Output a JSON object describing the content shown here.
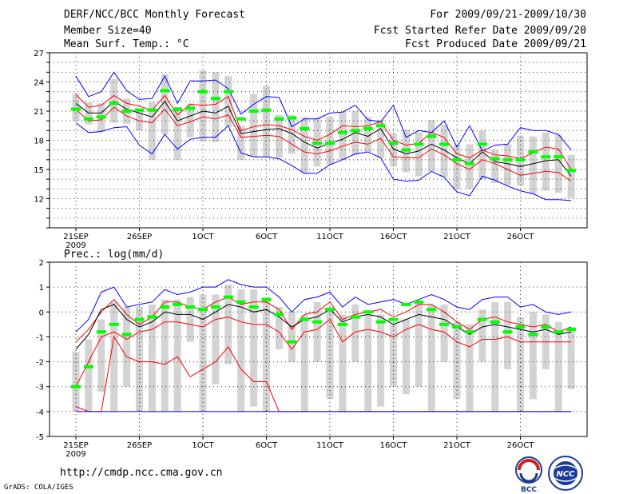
{
  "header": {
    "title": "DERF/NCC/BCC Monthly Forecast",
    "member_size": "Member Size=40",
    "variable": "Mean Surf. Temp.: °C",
    "period": "For 2009/09/21-2009/10/30",
    "started": "Fcst Started Refer Date 2009/09/20",
    "produced": "Fcst Produced Date 2009/09/21"
  },
  "footer": {
    "url": "http://cmdp.ncc.cma.gov.cn",
    "credit": "GrADS: COLA/IGES"
  },
  "logos": {
    "left": "BCC",
    "right": "NCC"
  },
  "colors": {
    "max": "#0000ff",
    "min": "#ff0000",
    "mean": "#000000",
    "obs": "#00ff00",
    "box": "#d3d3d3"
  },
  "chart_data": [
    {
      "type": "line",
      "title": "Mean Surf. Temp.: °C",
      "xlabel": "",
      "ylabel": "",
      "x_tick_labels": [
        "21SEP",
        "26SEP",
        "1OCT",
        "6OCT",
        "11OCT",
        "16OCT",
        "21OCT",
        "26OCT"
      ],
      "year_label": "2009",
      "ylim": [
        9,
        27
      ],
      "y_ticks": [
        12,
        15,
        18,
        21,
        24,
        27
      ],
      "series": [
        {
          "name": "max",
          "color": "#0000ff",
          "values": [
            24.6,
            22.5,
            23.0,
            25.0,
            23.1,
            22.2,
            22.3,
            24.6,
            21.8,
            24.1,
            24.1,
            24.2,
            23.3,
            20.7,
            21.7,
            22.5,
            22.4,
            19.4,
            20.2,
            20.2,
            20.8,
            20.9,
            21.6,
            20.1,
            19.9,
            21.6,
            18.3,
            19.0,
            18.8,
            20.0,
            17.3,
            19.5,
            16.9,
            17.5,
            17.6,
            19.3,
            19.0,
            19.0,
            18.6,
            17.0
          ]
        },
        {
          "name": "upper",
          "color": "#ff0000",
          "values": [
            22.7,
            21.4,
            21.6,
            22.6,
            21.8,
            21.5,
            21.1,
            22.6,
            20.6,
            21.7,
            21.6,
            21.7,
            22.5,
            19.0,
            19.4,
            19.6,
            19.5,
            19.1,
            18.4,
            18.0,
            18.6,
            19.5,
            19.4,
            19.5,
            19.9,
            18.0,
            17.5,
            17.7,
            18.8,
            18.3,
            16.6,
            16.2,
            17.0,
            16.5,
            16.4,
            16.1,
            16.7,
            17.3,
            17.1,
            15.0
          ]
        },
        {
          "name": "mean",
          "color": "#000000",
          "values": [
            21.8,
            20.8,
            20.8,
            22.0,
            21.2,
            20.8,
            20.4,
            22.0,
            20.0,
            20.5,
            21.0,
            20.8,
            21.5,
            18.7,
            18.9,
            19.1,
            19.2,
            18.7,
            17.8,
            17.2,
            17.7,
            18.1,
            18.8,
            18.4,
            19.2,
            17.1,
            16.6,
            16.9,
            17.6,
            17.0,
            16.2,
            15.6,
            16.8,
            15.8,
            15.6,
            15.3,
            15.6,
            15.9,
            16.0,
            14.3
          ]
        },
        {
          "name": "lower",
          "color": "#ff0000",
          "values": [
            21.2,
            20.0,
            20.1,
            21.4,
            20.5,
            20.0,
            19.8,
            21.2,
            19.5,
            19.9,
            20.4,
            20.2,
            20.6,
            18.3,
            18.4,
            18.5,
            18.4,
            17.6,
            16.8,
            16.6,
            16.9,
            17.4,
            17.8,
            17.6,
            18.2,
            16.3,
            16.2,
            16.2,
            17.1,
            16.5,
            15.6,
            15.0,
            16.0,
            15.6,
            15.0,
            14.4,
            14.6,
            14.8,
            14.7,
            13.8
          ]
        },
        {
          "name": "min",
          "color": "#0000ff",
          "values": [
            19.8,
            18.8,
            18.9,
            19.3,
            19.4,
            17.5,
            16.6,
            18.6,
            17.1,
            18.1,
            18.3,
            18.3,
            19.5,
            16.7,
            16.3,
            16.3,
            16.1,
            15.4,
            14.6,
            14.6,
            15.5,
            16.0,
            16.6,
            16.8,
            16.2,
            14.0,
            13.8,
            13.9,
            14.8,
            14.2,
            12.7,
            12.3,
            14.3,
            13.9,
            13.3,
            12.8,
            12.5,
            11.9,
            11.9,
            11.8
          ]
        }
      ],
      "observed": [
        21.2,
        20.2,
        20.4,
        21.8,
        21.0,
        21.1,
        21.1,
        23.1,
        21.2,
        21.3,
        23.0,
        22.3,
        23.0,
        20.2,
        21.0,
        21.1,
        20.2,
        20.3,
        19.2,
        17.7,
        17.7,
        18.8,
        19.0,
        19.2,
        19.5,
        17.7,
        17.0,
        17.6,
        18.4,
        17.6,
        16.0,
        15.6,
        17.6,
        16.1,
        16.0,
        16.0,
        16.8,
        16.3,
        16.3,
        14.9
      ],
      "box_low": [
        20.0,
        19.6,
        18.9,
        19.8,
        19.7,
        19.0,
        16.0,
        18.6,
        16.0,
        18.3,
        17.9,
        17.8,
        19.4,
        16.0,
        16.3,
        16.3,
        16.2,
        16.6,
        14.6,
        15.3,
        15.5,
        16.0,
        16.5,
        16.8,
        16.2,
        15.3,
        14.7,
        14.3,
        14.8,
        14.2,
        13.0,
        13.0,
        14.0,
        13.6,
        13.4,
        13.3,
        12.5,
        12.8,
        12.6,
        12.1
      ],
      "box_high": [
        22.8,
        21.9,
        21.8,
        24.3,
        22.3,
        21.3,
        21.9,
        24.8,
        21.4,
        21.8,
        25.2,
        25.0,
        24.6,
        19.5,
        22.8,
        23.6,
        20.6,
        20.6,
        20.4,
        20.3,
        20.4,
        20.9,
        21.0,
        20.4,
        20.1,
        18.7,
        19.1,
        18.8,
        20.1,
        19.6,
        17.5,
        17.6,
        19.0,
        17.0,
        17.6,
        18.5,
        18.4,
        18.8,
        18.6,
        16.5
      ]
    },
    {
      "type": "line",
      "title": "Prec.: log(mm/d)",
      "xlabel": "",
      "ylabel": "",
      "x_tick_labels": [
        "21SEP",
        "26SEP",
        "1OCT",
        "6OCT",
        "11OCT",
        "16OCT",
        "21OCT",
        "26OCT"
      ],
      "year_label": "2009",
      "ylim": [
        -5,
        2
      ],
      "y_ticks": [
        -5,
        -4,
        -3,
        -2,
        -1,
        0,
        1,
        2
      ],
      "series": [
        {
          "name": "max",
          "color": "#0000ff",
          "values": [
            -0.8,
            -0.3,
            0.8,
            1.0,
            0.2,
            0.3,
            0.4,
            0.9,
            0.7,
            0.8,
            1.0,
            1.0,
            1.3,
            1.1,
            1.0,
            1.0,
            0.6,
            0.0,
            0.5,
            0.6,
            0.8,
            0.2,
            0.6,
            0.3,
            0.4,
            0.5,
            0.3,
            0.5,
            0.7,
            0.5,
            0.2,
            0.1,
            0.5,
            0.6,
            0.6,
            0.2,
            0.3,
            0.0,
            -0.1,
            0.0
          ]
        },
        {
          "name": "upper",
          "color": "#ff0000",
          "values": [
            -1.2,
            -0.7,
            0.0,
            0.5,
            -0.1,
            -0.5,
            -0.2,
            0.4,
            0.4,
            0.2,
            0.1,
            0.4,
            0.6,
            0.3,
            0.4,
            0.4,
            0.1,
            -0.7,
            -0.1,
            0.0,
            0.4,
            -0.3,
            -0.1,
            0.0,
            0.1,
            -0.2,
            0.0,
            0.3,
            0.3,
            0.0,
            -0.4,
            -0.7,
            -0.3,
            -0.2,
            -0.4,
            -0.5,
            -0.6,
            -0.5,
            -0.8,
            -0.6
          ]
        },
        {
          "name": "mean",
          "color": "#000000",
          "values": [
            -1.5,
            -0.9,
            0.1,
            0.3,
            -0.3,
            -0.6,
            -0.4,
            0.0,
            -0.1,
            -0.1,
            -0.3,
            0.0,
            0.3,
            0.2,
            0.0,
            0.1,
            -0.2,
            -0.6,
            -0.3,
            -0.2,
            0.1,
            -0.4,
            -0.2,
            -0.1,
            -0.2,
            -0.5,
            -0.3,
            -0.1,
            -0.2,
            -0.3,
            -0.6,
            -0.9,
            -0.6,
            -0.5,
            -0.6,
            -0.7,
            -0.8,
            -0.7,
            -0.9,
            -0.8
          ]
        },
        {
          "name": "lower",
          "color": "#ff0000",
          "values": [
            -3.0,
            -2.0,
            -1.0,
            -0.8,
            -1.1,
            -0.8,
            -0.7,
            -0.4,
            -0.4,
            -0.5,
            -0.6,
            -0.3,
            -0.2,
            -0.4,
            -0.5,
            -0.5,
            -0.8,
            -1.5,
            -0.8,
            -0.7,
            -0.3,
            -1.2,
            -0.8,
            -0.7,
            -0.8,
            -1.0,
            -0.7,
            -0.5,
            -0.7,
            -0.8,
            -1.2,
            -1.4,
            -1.1,
            -1.1,
            -1.0,
            -1.2,
            -1.2,
            -1.2,
            -1.2,
            -1.2
          ]
        },
        {
          "name": "min",
          "color": "#ff0000",
          "values": [
            -3.8,
            -4.0,
            -4.0,
            -1.0,
            -1.8,
            -2.0,
            -2.0,
            -2.1,
            -1.8,
            -2.6,
            -2.3,
            -2.0,
            -1.4,
            -2.3,
            -2.8,
            -2.8,
            -4.0,
            -4.0,
            -4.0,
            -4.0,
            -4.0,
            -4.0,
            -4.0,
            -4.0,
            -4.0,
            -4.0,
            -4.0,
            -4.0,
            -4.0,
            -4.0,
            -4.0,
            -4.0,
            -4.0,
            -4.0,
            -4.0,
            -4.0,
            -4.0,
            -4.0,
            -4.0,
            -4.0
          ]
        },
        {
          "name": "absmin",
          "color": "#0000ff",
          "values": [
            -4.0,
            -4.0,
            -4.0,
            -4.0,
            -4.0,
            -4.0,
            -4.0,
            -4.0,
            -4.0,
            -4.0,
            -4.0,
            -4.0,
            -4.0,
            -4.0,
            -4.0,
            -4.0,
            -4.0,
            -4.0,
            -4.0,
            -4.0,
            -4.0,
            -4.0,
            -4.0,
            -4.0,
            -4.0,
            -4.0,
            -4.0,
            -4.0,
            -4.0,
            -4.0,
            -4.0,
            -4.0,
            -4.0,
            -4.0,
            -4.0,
            -4.0,
            -4.0,
            -4.0,
            -4.0,
            -4.0
          ]
        }
      ],
      "observed": [
        -3.0,
        -2.2,
        -0.8,
        -0.5,
        -0.9,
        -0.3,
        -0.2,
        0.2,
        0.3,
        0.2,
        0.1,
        0.2,
        0.6,
        0.4,
        0.2,
        0.5,
        -0.1,
        -1.2,
        -0.3,
        -0.4,
        0.1,
        -0.5,
        -0.2,
        0.0,
        -0.4,
        -0.3,
        0.3,
        0.4,
        0.1,
        -0.5,
        -0.6,
        -0.8,
        -0.3,
        -0.4,
        -0.8,
        -0.6,
        -0.9,
        -0.6,
        -0.8,
        -0.7
      ],
      "box_low": [
        -4.0,
        -4.0,
        -3.2,
        -4.0,
        -3.0,
        -4.0,
        -4.0,
        -4.0,
        -4.0,
        -1.2,
        -4.0,
        -2.9,
        -2.1,
        -4.0,
        -3.8,
        -4.0,
        -1.5,
        -2.0,
        -4.0,
        -2.0,
        -3.5,
        -4.0,
        -2.0,
        -4.0,
        -3.8,
        -3.0,
        -3.3,
        -3.0,
        -4.0,
        -2.0,
        -3.5,
        -4.0,
        -2.0,
        -4.0,
        -2.3,
        -4.0,
        -3.5,
        -2.3,
        -4.0,
        -3.1
      ],
      "box_high": [
        -1.6,
        -1.1,
        -0.3,
        0.4,
        0.2,
        0.2,
        0.3,
        0.5,
        0.5,
        0.6,
        0.7,
        0.7,
        1.1,
        0.9,
        0.9,
        0.6,
        0.2,
        0.0,
        -0.1,
        0.4,
        0.2,
        -0.1,
        0.3,
        -0.1,
        -0.1,
        -0.5,
        -0.3,
        0.4,
        0.3,
        0.3,
        -0.4,
        -0.5,
        0.1,
        0.4,
        0.4,
        -0.2,
        0.0,
        -0.1,
        -0.4,
        -0.6
      ]
    }
  ]
}
